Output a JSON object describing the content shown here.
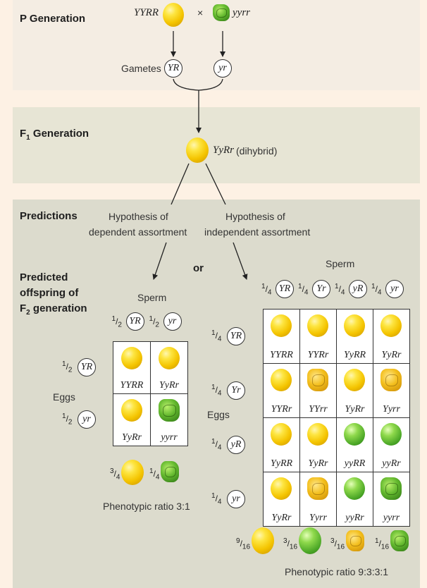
{
  "p_generation": {
    "heading": "P Generation",
    "parent1": "YYRR",
    "cross": "×",
    "parent2": "yyrr",
    "gametes_label": "Gametes",
    "gamete1": "YR",
    "gamete2": "yr"
  },
  "f1_generation": {
    "heading_main": "F",
    "heading_sub": "1",
    "heading_rest": " Generation",
    "genotype": "YyRr",
    "note": "(dihybrid)"
  },
  "predictions": {
    "heading": "Predictions",
    "dependent_line1": "Hypothesis of",
    "dependent_line2": "dependent assortment",
    "or": "or",
    "independent_line1": "Hypothesis of",
    "independent_line2": "independent assortment"
  },
  "offspring_heading": {
    "line1": "Predicted",
    "line2": "offspring of",
    "line3_main": "F",
    "line3_sub": "2",
    "line3_rest": " generation"
  },
  "dependent": {
    "sperm_label": "Sperm",
    "eggs_label": "Eggs",
    "frac_num": "1",
    "frac_den": "2",
    "gametes": [
      "YR",
      "yr"
    ],
    "cells": [
      {
        "genotype": "YYRR",
        "pea": "yellow-round"
      },
      {
        "genotype": "YyRr",
        "pea": "yellow-round"
      },
      {
        "genotype": "YyRr",
        "pea": "yellow-round"
      },
      {
        "genotype": "yyrr",
        "pea": "green-wrinkled"
      }
    ],
    "summary": [
      {
        "num": "3",
        "den": "4",
        "pea": "yellow-round"
      },
      {
        "num": "1",
        "den": "4",
        "pea": "green-wrinkled"
      }
    ],
    "ratio_text": "Phenotypic ratio 3:1"
  },
  "independent": {
    "sperm_label": "Sperm",
    "eggs_label": "Eggs",
    "frac_num": "1",
    "frac_den": "4",
    "gametes": [
      "YR",
      "Yr",
      "yR",
      "yr"
    ],
    "cells": [
      {
        "genotype": "YYRR",
        "pea": "yellow-round"
      },
      {
        "genotype": "YYRr",
        "pea": "yellow-round"
      },
      {
        "genotype": "YyRR",
        "pea": "yellow-round"
      },
      {
        "genotype": "YyRr",
        "pea": "yellow-round"
      },
      {
        "genotype": "YYRr",
        "pea": "yellow-round"
      },
      {
        "genotype": "YYrr",
        "pea": "yellow-wrinkled"
      },
      {
        "genotype": "YyRr",
        "pea": "yellow-round"
      },
      {
        "genotype": "Yyrr",
        "pea": "yellow-wrinkled"
      },
      {
        "genotype": "YyRR",
        "pea": "yellow-round"
      },
      {
        "genotype": "YyRr",
        "pea": "yellow-round"
      },
      {
        "genotype": "yyRR",
        "pea": "green-round"
      },
      {
        "genotype": "yyRr",
        "pea": "green-round"
      },
      {
        "genotype": "YyRr",
        "pea": "yellow-round"
      },
      {
        "genotype": "Yyrr",
        "pea": "yellow-wrinkled"
      },
      {
        "genotype": "yyRr",
        "pea": "green-round"
      },
      {
        "genotype": "yyrr",
        "pea": "green-wrinkled"
      }
    ],
    "summary": [
      {
        "num": "9",
        "den": "16",
        "pea": "yellow-round"
      },
      {
        "num": "3",
        "den": "16",
        "pea": "green-round"
      },
      {
        "num": "3",
        "den": "16",
        "pea": "yellow-wrinkled"
      },
      {
        "num": "1",
        "den": "16",
        "pea": "green-wrinkled"
      }
    ],
    "ratio_text": "Phenotypic ratio 9:3:3:1"
  },
  "colors": {
    "page_bg": "#fdf1e4",
    "band_p": "#f4ede3",
    "band_f1": "#e7e5d5",
    "band_pred": "#dcdbcd",
    "yellow_pea": "#f4c400",
    "green_pea": "#4aa626"
  }
}
